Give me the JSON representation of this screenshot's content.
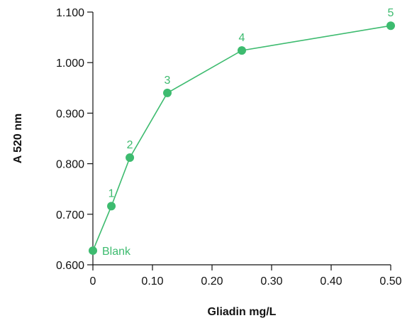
{
  "chart_data": {
    "type": "line",
    "xlabel": "Gliadin mg/L",
    "ylabel": "A 520 nm",
    "xlim": [
      0,
      0.5
    ],
    "ylim": [
      0.6,
      1.1
    ],
    "x_ticks": [
      "0",
      "0.10",
      "0.20",
      "0.30",
      "0.40",
      "0.50"
    ],
    "y_ticks": [
      "0.600",
      "0.700",
      "0.800",
      "0.900",
      "1.000",
      "1.100"
    ],
    "grid": false,
    "series": [
      {
        "color": "#3dbb6f",
        "points": [
          {
            "x": 0.0,
            "y": 0.628,
            "label": "Blank"
          },
          {
            "x": 0.031,
            "y": 0.716,
            "label": "1"
          },
          {
            "x": 0.062,
            "y": 0.812,
            "label": "2"
          },
          {
            "x": 0.125,
            "y": 0.94,
            "label": "3"
          },
          {
            "x": 0.25,
            "y": 1.024,
            "label": "4"
          },
          {
            "x": 0.5,
            "y": 1.073,
            "label": "5"
          }
        ]
      }
    ]
  }
}
